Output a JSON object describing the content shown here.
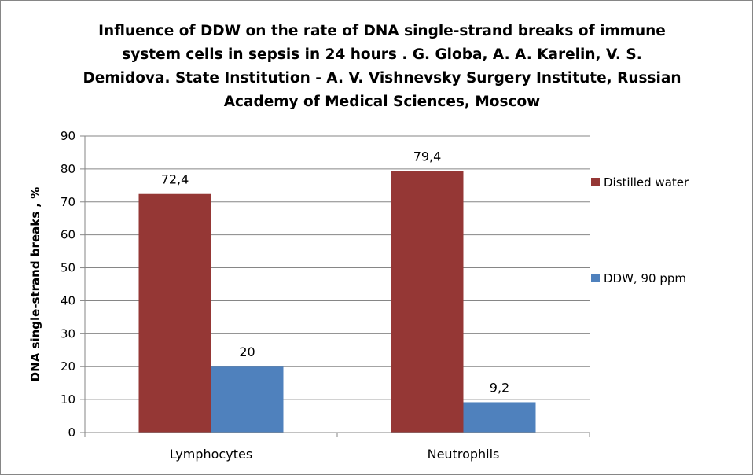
{
  "chart_data": {
    "type": "bar",
    "title_lines": [
      "Influence of DDW on the rate of DNA single-strand breaks of immune",
      "system cells  in sepsis in 24 hours . G. Globa, A. A. Karelin, V. S.",
      "Demidova. State Institution - A. V. Vishnevsky Surgery Institute, Russian",
      "Academy of Medical Sciences, Moscow"
    ],
    "categories": [
      "Lymphocytes",
      "Neutrophils"
    ],
    "series": [
      {
        "name": "Distilled water",
        "values": [
          72.4,
          79.4
        ],
        "labels": [
          "72,4",
          "79,4"
        ],
        "color": "#953735"
      },
      {
        "name": "DDW, 90 ppm",
        "values": [
          20,
          9.2
        ],
        "labels": [
          "20",
          "9,2"
        ],
        "color": "#4f81bd"
      }
    ],
    "xlabel": "",
    "ylabel": "DNA single-strand breaks , %",
    "ylim": [
      0,
      90
    ],
    "yticks": [
      "0",
      "10",
      "20",
      "30",
      "40",
      "50",
      "60",
      "70",
      "80",
      "90"
    ],
    "grid": true,
    "legend": "right"
  }
}
